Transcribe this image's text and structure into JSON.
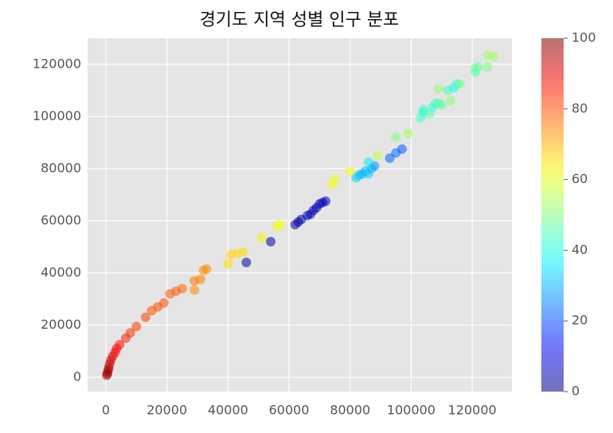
{
  "chart_data": {
    "type": "scatter",
    "title": "경기도 지역 성별 인구 분포",
    "x": [
      300,
      500,
      700,
      900,
      1200,
      1600,
      2200,
      3000,
      3500,
      4500,
      6500,
      8000,
      10000,
      13000,
      15000,
      17000,
      19000,
      21000,
      23000,
      25000,
      29000,
      29000,
      31000,
      32000,
      33000,
      40000,
      41000,
      43000,
      45000,
      51000,
      56000,
      57000,
      46000,
      54000,
      62000,
      63000,
      64000,
      66000,
      67000,
      68000,
      69000,
      70000,
      71000,
      72000,
      74000,
      75000,
      80000,
      82000,
      83000,
      84000,
      85000,
      86000,
      87000,
      88000,
      86000,
      89000,
      93000,
      95000,
      97000,
      95000,
      99000,
      103000,
      104000,
      104000,
      106000,
      107000,
      108000,
      109000,
      110000,
      109000,
      112000,
      113000,
      114000,
      115000,
      116000,
      121000,
      121000,
      122000,
      125000,
      125000,
      127000
    ],
    "values": [
      800,
      1500,
      2500,
      3500,
      5000,
      6500,
      8000,
      9500,
      11000,
      12500,
      15000,
      17000,
      19500,
      23000,
      25500,
      27000,
      28500,
      32000,
      33000,
      34000,
      33500,
      37000,
      37500,
      41000,
      41500,
      43500,
      47000,
      47500,
      48000,
      53500,
      58000,
      58500,
      44000,
      52000,
      58500,
      59500,
      60500,
      62000,
      62500,
      64000,
      65000,
      66500,
      67000,
      67500,
      74000,
      76000,
      79000,
      76500,
      77500,
      78000,
      79000,
      78000,
      80000,
      81000,
      82500,
      85000,
      84000,
      86000,
      87500,
      92000,
      93500,
      99500,
      101500,
      102500,
      101000,
      103500,
      105000,
      105000,
      104500,
      110500,
      110000,
      106000,
      111000,
      112500,
      112500,
      117000,
      118500,
      119000,
      119000,
      123500,
      123000
    ],
    "color_values": [
      98,
      98,
      97,
      96,
      93,
      92,
      90,
      89,
      88,
      86,
      84,
      83,
      82,
      81,
      80,
      80,
      80,
      79,
      79,
      78,
      74,
      76,
      75,
      74,
      74,
      66,
      67,
      66,
      66,
      64,
      62,
      62,
      3,
      3,
      3,
      4,
      4,
      5,
      5,
      5,
      5,
      6,
      6,
      6,
      62,
      61,
      61,
      33,
      32,
      31,
      30,
      33,
      30,
      27,
      36,
      57,
      22,
      23,
      21,
      50,
      53,
      43,
      42,
      41,
      47,
      41,
      42,
      47,
      46,
      52,
      45,
      51,
      38,
      44,
      49,
      45,
      47,
      48,
      50,
      53,
      53
    ],
    "colormap": "jet",
    "alpha": 0.55,
    "clim": [
      0,
      100
    ],
    "cticks": [
      0,
      20,
      40,
      60,
      80,
      100
    ],
    "xlim": [
      -6000,
      133000
    ],
    "ylim": [
      -5500,
      130000
    ],
    "xticks": [
      0,
      20000,
      40000,
      60000,
      80000,
      100000,
      120000
    ],
    "yticks": [
      0,
      20000,
      40000,
      60000,
      80000,
      100000,
      120000
    ],
    "grid": true
  }
}
